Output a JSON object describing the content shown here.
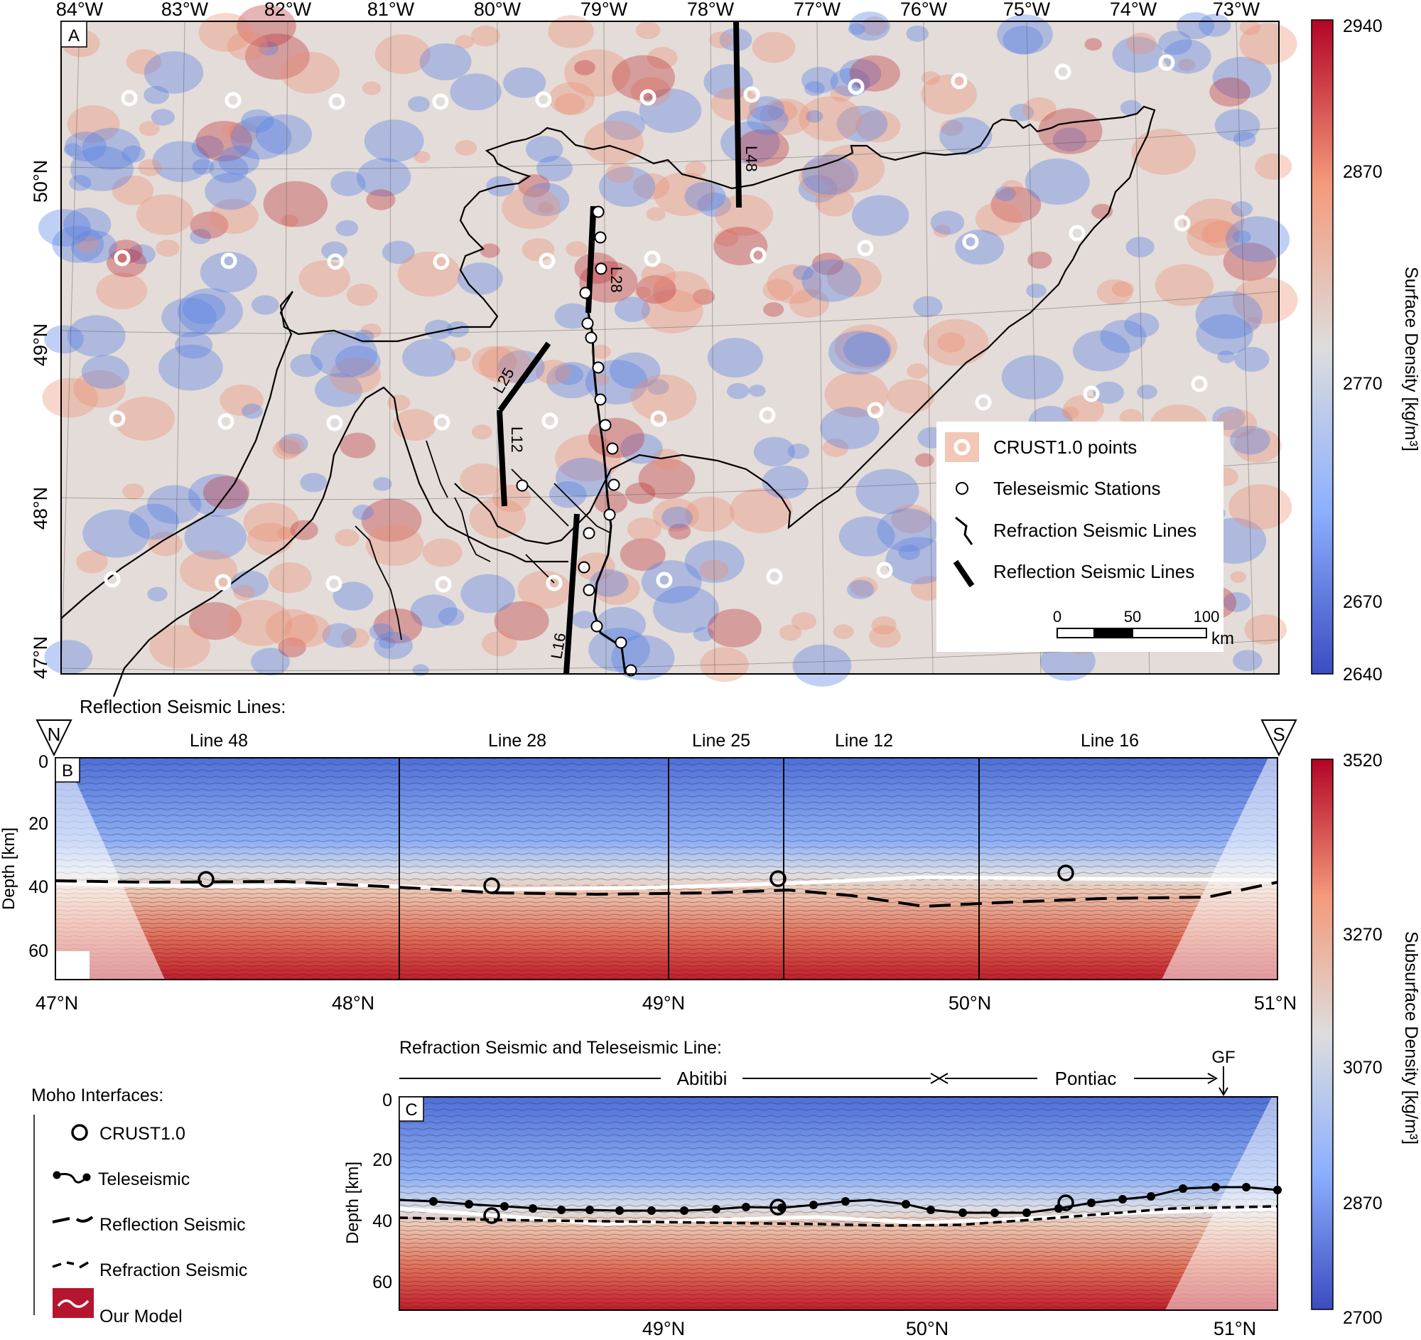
{
  "panel_a": {
    "label": "A",
    "lon_labels": [
      "84°W",
      "83°W",
      "82°W",
      "81°W",
      "80°W",
      "79°W",
      "78°W",
      "77°W",
      "76°W",
      "75°W",
      "74°W",
      "73°W"
    ],
    "lat_labels": [
      "50°N",
      "49°N",
      "48°N",
      "47°N"
    ],
    "line_labels": [
      "L48",
      "L28",
      "L25",
      "L12",
      "L16"
    ],
    "legend": {
      "crust": "CRUST1.0 points",
      "tele": "Teleseismic Stations",
      "refraction": "Refraction Seismic Lines",
      "reflection": "Reflection Seismic Lines"
    },
    "scalebar": {
      "ticks": [
        "0",
        "50",
        "100"
      ],
      "unit": "km"
    },
    "colorbar": {
      "label": "Surface Density [kg/m³]",
      "ticks": [
        "2940",
        "2870",
        "2770",
        "2670",
        "2640"
      ],
      "colors": {
        "low": "#3b4cc0",
        "mid": "#dddddd",
        "high": "#b40426"
      }
    }
  },
  "panel_b": {
    "label": "B",
    "title": "Reflection Seismic Lines:",
    "north": "N",
    "south": "S",
    "segments": [
      "Line 48",
      "Line 28",
      "Line 25",
      "Line 12",
      "Line 16"
    ],
    "depth_ticks": [
      "0",
      "20",
      "40",
      "60"
    ],
    "ylabel": "Depth [km]",
    "lat_ticks": [
      "47°N",
      "48°N",
      "49°N",
      "50°N",
      "51°N"
    ]
  },
  "panel_c": {
    "label": "C",
    "title": "Refraction Seismic and Teleseismic Line:",
    "regions": [
      "Abitibi",
      "Pontiac"
    ],
    "gf": "GF",
    "depth_ticks": [
      "0",
      "20",
      "40",
      "60"
    ],
    "ylabel": "Depth [km]",
    "lat_ticks": [
      "49°N",
      "50°N",
      "51°N"
    ]
  },
  "moho_legend": {
    "title": "Moho Interfaces:",
    "items": [
      "CRUST1.0",
      "Teleseismic",
      "Reflection Seismic",
      "Refraction Seismic",
      "Our Model"
    ]
  },
  "colorbar_b": {
    "label": "Subsurface Density [kg/m³]",
    "ticks": [
      "3520",
      "3270",
      "3070",
      "2870",
      "2700"
    ]
  }
}
